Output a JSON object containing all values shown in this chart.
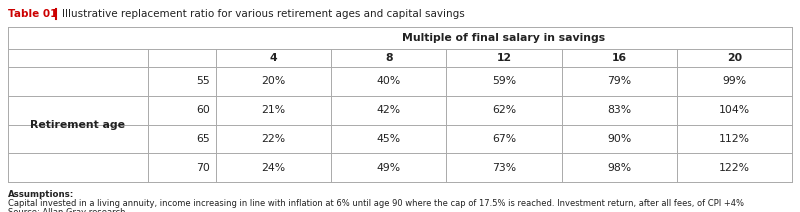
{
  "title_prefix": "Table 01",
  "title_text": "  Illustrative replacement ratio for various retirement ages and capital savings",
  "col_header_main": "Multiple of final salary in savings",
  "col_subheaders": [
    "4",
    "8",
    "12",
    "16",
    "20"
  ],
  "row_group_label": "Retirement age",
  "row_ages": [
    "55",
    "60",
    "65",
    "70"
  ],
  "table_data": [
    [
      "20%",
      "40%",
      "59%",
      "79%",
      "99%"
    ],
    [
      "21%",
      "42%",
      "62%",
      "83%",
      "104%"
    ],
    [
      "22%",
      "45%",
      "67%",
      "90%",
      "112%"
    ],
    [
      "24%",
      "49%",
      "73%",
      "98%",
      "122%"
    ]
  ],
  "assumptions_bold": "Assumptions:",
  "assumptions_text": "Capital invested in a living annuity, income increasing in line with inflation at 6% until age 90 where the cap of 17.5% is reached. Investment return, after all fees, of CPI +4%",
  "source_text": "Source: Allan Gray research.",
  "title_prefix_color": "#cc0000",
  "divider_color": "#cc0000",
  "border_color": "#aaaaaa",
  "bg_color": "#ffffff",
  "text_color": "#222222",
  "fig_width": 8.0,
  "fig_height": 2.12
}
